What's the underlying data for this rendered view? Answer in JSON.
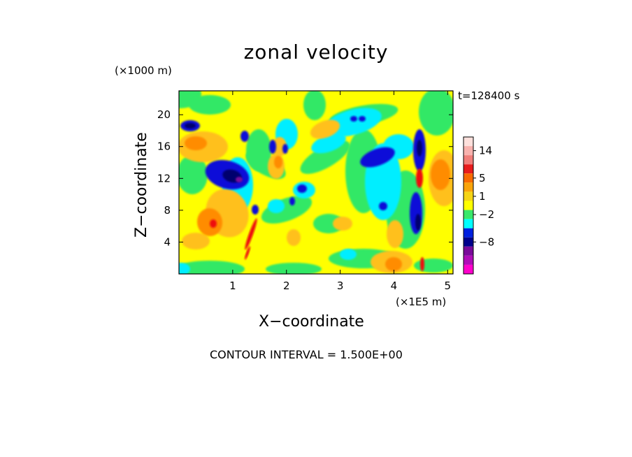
{
  "chart_data": {
    "type": "heatmap",
    "title": "zonal velocity",
    "time_label": "t=128400 s",
    "xlabel": "X−coordinate",
    "ylabel": "Z−coordinate",
    "x_unit": "(×1E5 m)",
    "y_unit": "(×1000 m)",
    "xlim": [
      0,
      5.1
    ],
    "ylim": [
      0,
      23
    ],
    "x_ticks": [
      "1",
      "2",
      "3",
      "4",
      "5"
    ],
    "y_ticks": [
      "4",
      "8",
      "12",
      "16",
      "20"
    ],
    "contour_interval_text": "CONTOUR INTERVAL = 1.500E+00",
    "colorbar": {
      "tick_labels": [
        "14",
        "5",
        "1",
        "−2",
        "−8"
      ],
      "levels_top_to_bottom": [
        "#fde0dc",
        "#f8b2ae",
        "#f07e7a",
        "#e81c1c",
        "#f86a00",
        "#f9a40a",
        "#f5d415",
        "#ffff00",
        "#39e86a",
        "#00ffff",
        "#0020e0",
        "#00008c",
        "#7a0a9a",
        "#b00cb8",
        "#ff00cc"
      ]
    },
    "colors": {
      "background_field": "#ffff00",
      "green": "#33e866",
      "cyan": "#00eeff",
      "orange": "#ffc01a",
      "dark_orange": "#ff8c00",
      "red": "#ee1111",
      "blue": "#0e10d8",
      "navy": "#02026e",
      "purple": "#7a0a9a"
    }
  }
}
